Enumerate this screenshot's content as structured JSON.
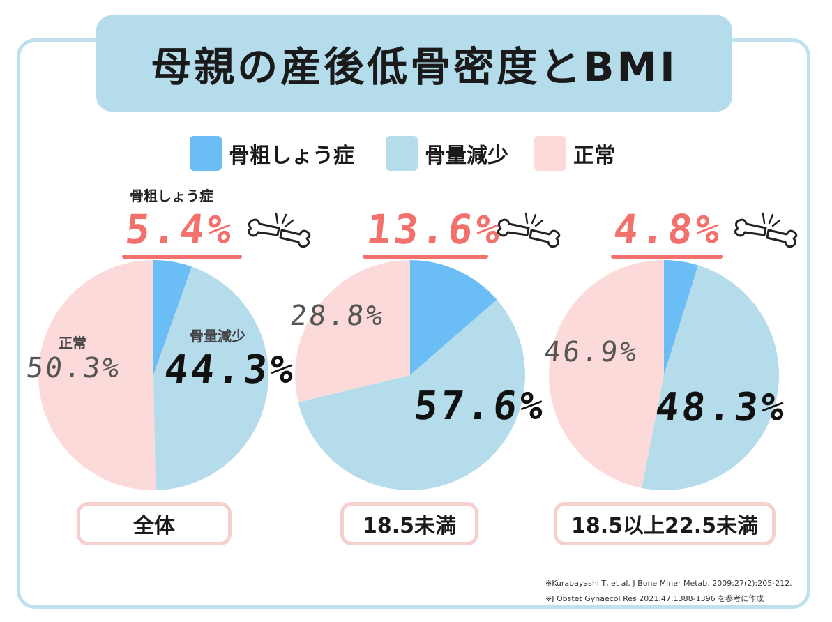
{
  "title": "母親の産後低骨密度とBMI",
  "legend": [
    {
      "label": "骨粗しょう症",
      "color": "#6bbdf6"
    },
    {
      "label": "骨量減少",
      "color": "#b5dceb"
    },
    {
      "label": "正常",
      "color": "#fddada"
    }
  ],
  "osteoporosis_label": "骨粗しょう症",
  "chart_data": [
    {
      "type": "pie",
      "category": "全体",
      "slices": [
        {
          "name": "骨粗しょう症",
          "value": 5.4,
          "label": "5.4%"
        },
        {
          "name": "骨量減少",
          "value": 44.3,
          "label": "44.3%"
        },
        {
          "name": "正常",
          "value": 50.3,
          "label": "50.3%"
        }
      ],
      "annotations": {
        "osteoporosis": "5.4%",
        "osteopenia_label": "骨量減少",
        "normal_label": "正常"
      }
    },
    {
      "type": "pie",
      "category": "18.5未満",
      "slices": [
        {
          "name": "骨粗しょう症",
          "value": 13.6,
          "label": "13.6%"
        },
        {
          "name": "骨量減少",
          "value": 57.6,
          "label": "57.6%"
        },
        {
          "name": "正常",
          "value": 28.8,
          "label": "28.8%"
        }
      ],
      "annotations": {
        "osteoporosis": "13.6%"
      }
    },
    {
      "type": "pie",
      "category": "18.5以上22.5未満",
      "slices": [
        {
          "name": "骨粗しょう症",
          "value": 4.8,
          "label": "4.8%"
        },
        {
          "name": "骨量減少",
          "value": 48.3,
          "label": "48.3%"
        },
        {
          "name": "正常",
          "value": 46.9,
          "label": "46.9%"
        }
      ],
      "annotations": {
        "osteoporosis": "4.8%"
      }
    }
  ],
  "references": [
    "※Kurabayashi T, et al. J Bone Miner Metab. 2009;27(2):205-212.",
    "※J Obstet Gynaecol Res 2021:47:1388-1396 を参考に作成"
  ],
  "icons": {
    "bone": "broken-bone-icon"
  }
}
